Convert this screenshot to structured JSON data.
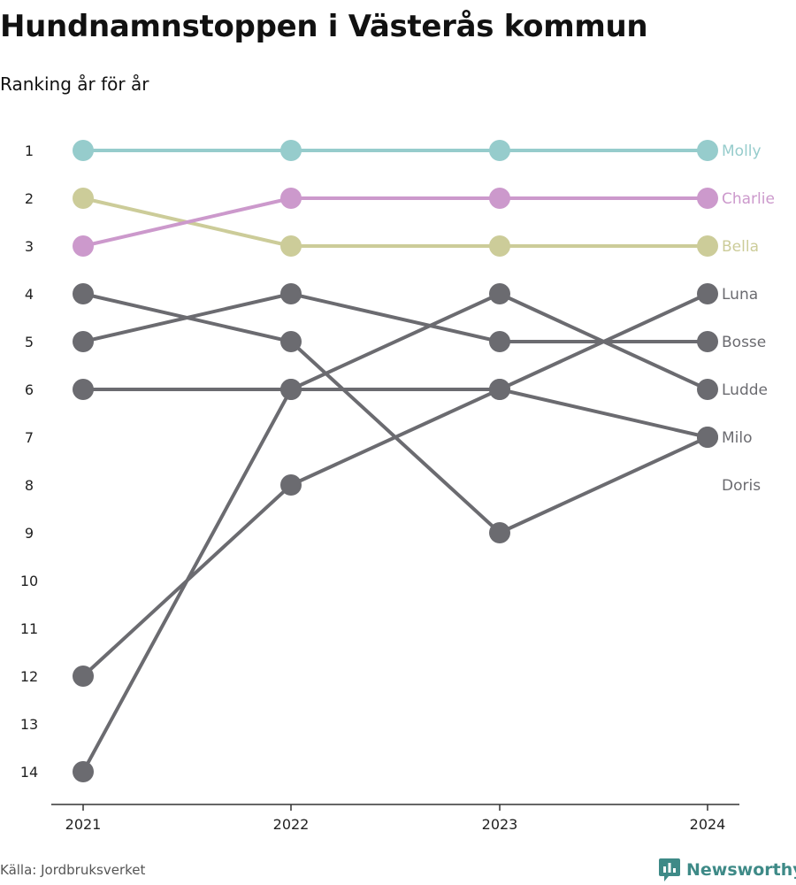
{
  "title": "Hundnamnstoppen i Västerås kommun",
  "subtitle": "Ranking år för år",
  "source": "Källa: Jordbruksverket",
  "brand": {
    "name": "Newsworthy",
    "icon": "newsworthy-logo-icon",
    "color": "#3e8a87"
  },
  "chart_data": {
    "type": "line",
    "x": [
      "2021",
      "2022",
      "2023",
      "2024"
    ],
    "ylabel": "",
    "xlabel": "",
    "y_ticks": [
      1,
      2,
      3,
      4,
      5,
      6,
      7,
      8,
      9,
      10,
      11,
      12,
      13,
      14
    ],
    "ylim": [
      1,
      14
    ],
    "y_inverted": true,
    "grid": false,
    "legend": "right-end labels",
    "series": [
      {
        "name": "Molly",
        "values": [
          1,
          1,
          1,
          1
        ],
        "color": "#96cccc"
      },
      {
        "name": "Charlie",
        "values": [
          3,
          2,
          2,
          2
        ],
        "color": "#cc99cc"
      },
      {
        "name": "Bella",
        "values": [
          2,
          3,
          3,
          3
        ],
        "color": "#cccc99"
      },
      {
        "name": "Luna",
        "values": [
          14,
          6,
          6,
          4
        ],
        "color": "#6b6b70"
      },
      {
        "name": "Bosse",
        "values": [
          5,
          4,
          5,
          5
        ],
        "color": "#6b6b70"
      },
      {
        "name": "Ludde",
        "values": [
          6,
          6,
          4,
          6
        ],
        "color": "#6b6b70"
      },
      {
        "name": "Milo",
        "values": [
          12,
          8,
          6,
          7
        ],
        "color": "#6b6b70"
      },
      {
        "name": "Doris",
        "values": [
          4,
          5,
          9,
          7
        ],
        "color": "#6b6b70"
      }
    ]
  }
}
